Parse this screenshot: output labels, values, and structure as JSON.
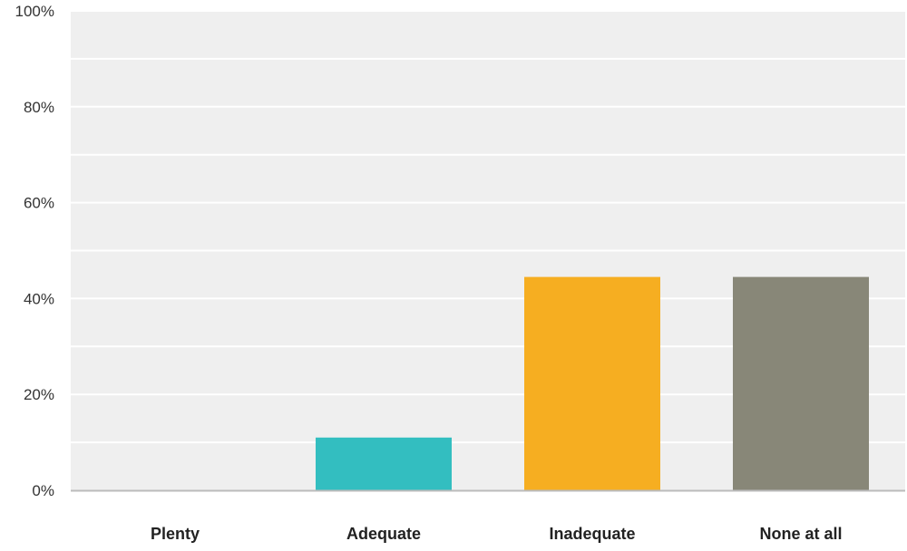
{
  "chart_data": {
    "type": "bar",
    "categories": [
      "Plenty",
      "Adequate",
      "Inadequate",
      "None at all"
    ],
    "values": [
      0,
      11,
      44.5,
      44.5
    ],
    "colors": [
      "#5aa9c6",
      "#33bec0",
      "#f6ae21",
      "#888778"
    ],
    "ylim": [
      0,
      100
    ],
    "yticks": [
      0,
      20,
      40,
      60,
      80,
      100
    ],
    "ytick_labels": [
      "0%",
      "20%",
      "40%",
      "60%",
      "80%",
      "100%"
    ],
    "grid": true,
    "background": "#efefef",
    "gridline_color": "#ffffff",
    "axis_color": "#bbbbbb"
  }
}
